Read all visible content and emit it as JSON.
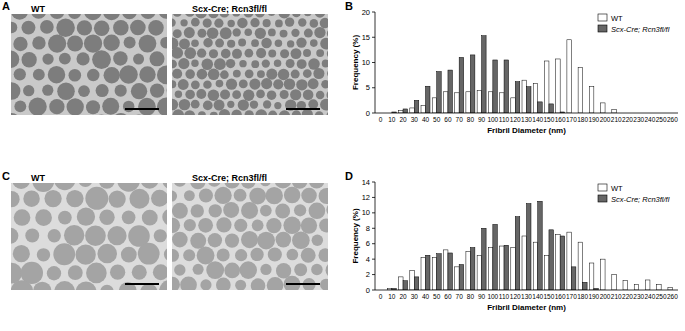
{
  "panel_labels": [
    "A",
    "B",
    "C",
    "D"
  ],
  "micrographs": [
    {
      "titles": [
        "WT",
        "Scx-Cre; Rcn3fl/fl"
      ]
    },
    {
      "titles": [
        "WT",
        "Scx-Cre; Rcn3fl/fl"
      ]
    }
  ],
  "chart_data": [
    {
      "type": "bar",
      "xlabel": "Fribril Diameter (nm)",
      "ylabel": "Frequency (%)",
      "categories": [
        0,
        10,
        20,
        30,
        40,
        50,
        60,
        70,
        80,
        90,
        100,
        110,
        120,
        130,
        140,
        150,
        160,
        170,
        180,
        190,
        200,
        210,
        220,
        230,
        240,
        250,
        260
      ],
      "series": [
        {
          "name": "WT",
          "color": "#ffffff",
          "values": [
            0,
            0,
            0.5,
            1,
            1.5,
            3,
            4.2,
            4,
            4.2,
            4.5,
            4.2,
            4,
            3,
            6.5,
            5.8,
            10.3,
            10.7,
            14.5,
            9,
            5.2,
            2,
            0.7,
            0,
            0,
            0,
            0,
            0
          ]
        },
        {
          "name": "Scx-Cre; Rcn3fl/fl",
          "color": "#666666",
          "values": [
            0,
            0.2,
            0.8,
            2.5,
            5.3,
            8.2,
            8.5,
            11,
            11.5,
            15.3,
            10.5,
            10.5,
            6.2,
            5.2,
            2.2,
            1.8,
            0.2,
            0,
            0,
            0,
            0,
            0,
            0,
            0,
            0,
            0,
            0
          ]
        }
      ],
      "ylim": [
        0,
        20
      ],
      "yticks": [
        0,
        5,
        10,
        15,
        20
      ],
      "grid": false,
      "legend": "top-right"
    },
    {
      "type": "bar",
      "xlabel": "Fribril Diameter (nm)",
      "ylabel": "Frequency (%)",
      "categories": [
        0,
        10,
        20,
        30,
        40,
        50,
        60,
        70,
        80,
        90,
        100,
        110,
        120,
        130,
        140,
        150,
        160,
        170,
        180,
        190,
        200,
        210,
        220,
        230,
        240,
        250,
        260
      ],
      "series": [
        {
          "name": "WT",
          "color": "#ffffff",
          "values": [
            0,
            0.2,
            1.7,
            2.5,
            4.2,
            4.2,
            5.2,
            3,
            5,
            4.5,
            5.5,
            5.7,
            5.5,
            7,
            6.2,
            4.5,
            7.2,
            7.5,
            6.2,
            3.5,
            4,
            2,
            1.2,
            0.7,
            1.3,
            0.7,
            0.3
          ]
        },
        {
          "name": "Scx-Cre; Rcn3fl/fl",
          "color": "#666666",
          "values": [
            0,
            0.2,
            1.2,
            1.7,
            4.5,
            4.7,
            4.8,
            3.3,
            5.5,
            8,
            8.5,
            5.8,
            9.5,
            11.2,
            11.5,
            7.8,
            7,
            3,
            1,
            0.2,
            0,
            0,
            0,
            0,
            0,
            0,
            0
          ]
        }
      ],
      "ylim": [
        0,
        14
      ],
      "yticks": [
        0,
        2,
        4,
        6,
        8,
        10,
        12,
        14
      ],
      "grid": false,
      "legend": "top-right"
    }
  ]
}
